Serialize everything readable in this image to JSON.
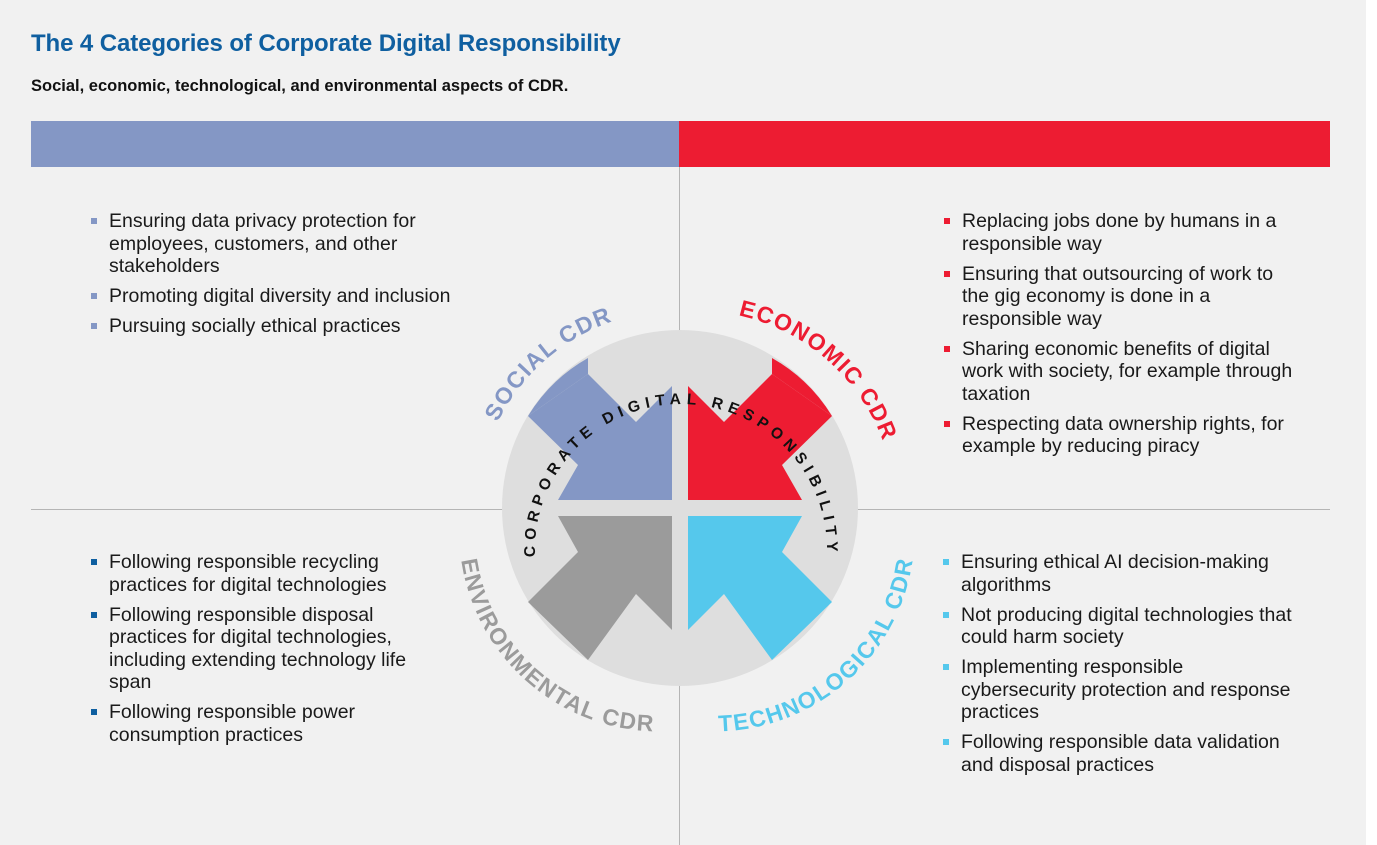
{
  "header": {
    "title": "The 4 Categories of Corporate Digital Responsibility",
    "subtitle": "Social, economic, technological, and environmental aspects of CDR."
  },
  "diagram": {
    "center_label": "CORPORATE DIGITAL RESPONSIBILITY",
    "quadrants": [
      {
        "label": "SOCIAL CDR",
        "color": "#8497c5"
      },
      {
        "label": "ECONOMIC CDR",
        "color": "#ed1c32"
      },
      {
        "label": "ENVIRONMENTAL CDR",
        "color": "#9b9b9b"
      },
      {
        "label": "TECHNOLOGICAL CDR",
        "color": "#55c8ec"
      }
    ]
  },
  "lists": {
    "social": [
      "Ensuring data privacy protection for employees, customers, and other stakeholders",
      "Promoting digital diversity and inclusion",
      "Pursuing socially ethical practices"
    ],
    "economic": [
      "Replacing jobs done by humans in a responsible way",
      "Ensuring that outsourcing of work to the gig economy is done in a responsible way",
      "Sharing economic benefits of digital work with society, for example through taxation",
      "Respecting data ownership rights, for example by reducing piracy"
    ],
    "environmental": [
      "Following responsible recycling practices for digital technologies",
      "Following responsible disposal practices for digital technologies, including extending technology life span",
      "Following responsible power consumption practices"
    ],
    "technological": [
      "Ensuring ethical AI decision-making algorithms",
      "Not producing digital technologies that could harm society",
      "Implementing responsible cybersecurity protection and response practices",
      "Following responsible data validation and disposal practices"
    ]
  }
}
